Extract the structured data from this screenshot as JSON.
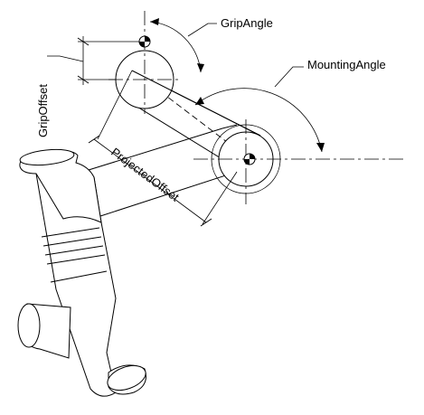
{
  "labels": {
    "grip_angle": "GripAngle",
    "mounting_angle": "MountingAngle",
    "grip_offset": "GripOffset",
    "projected_offset": "ProjectedOffset"
  },
  "colors": {
    "line": "#000000",
    "background": "#ffffff"
  }
}
